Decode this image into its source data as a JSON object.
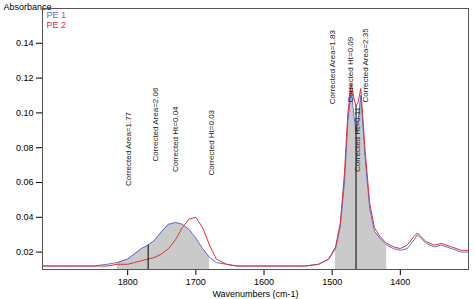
{
  "chart_data": {
    "type": "line",
    "x_label": "Wavenumbers (cm-1)",
    "y_label": "Absorbance",
    "x": [
      1925,
      1900,
      1875,
      1850,
      1830,
      1815,
      1800,
      1790,
      1780,
      1770,
      1760,
      1750,
      1740,
      1730,
      1720,
      1710,
      1700,
      1690,
      1680,
      1670,
      1655,
      1640,
      1620,
      1600,
      1580,
      1560,
      1540,
      1520,
      1505,
      1495,
      1488,
      1482,
      1477,
      1472,
      1468,
      1465,
      1462,
      1458,
      1452,
      1445,
      1438,
      1430,
      1420,
      1410,
      1400,
      1390,
      1380,
      1375,
      1370,
      1362,
      1350,
      1340,
      1325,
      1310,
      1300
    ],
    "series": [
      {
        "name": "PE 1",
        "color": "#5b6fd6",
        "values": [
          0.012,
          0.012,
          0.012,
          0.012,
          0.013,
          0.014,
          0.016,
          0.019,
          0.022,
          0.024,
          0.027,
          0.032,
          0.036,
          0.037,
          0.036,
          0.033,
          0.028,
          0.022,
          0.017,
          0.014,
          0.013,
          0.012,
          0.012,
          0.012,
          0.012,
          0.012,
          0.012,
          0.013,
          0.016,
          0.022,
          0.035,
          0.06,
          0.095,
          0.113,
          0.098,
          0.089,
          0.095,
          0.11,
          0.075,
          0.045,
          0.032,
          0.028,
          0.024,
          0.022,
          0.021,
          0.022,
          0.027,
          0.03,
          0.028,
          0.025,
          0.023,
          0.024,
          0.022,
          0.02,
          0.02
        ]
      },
      {
        "name": "PE 2",
        "color": "#e0303a",
        "values": [
          0.012,
          0.012,
          0.012,
          0.012,
          0.012,
          0.013,
          0.013,
          0.014,
          0.015,
          0.016,
          0.017,
          0.019,
          0.022,
          0.027,
          0.034,
          0.039,
          0.04,
          0.034,
          0.024,
          0.016,
          0.013,
          0.012,
          0.012,
          0.012,
          0.012,
          0.012,
          0.012,
          0.013,
          0.016,
          0.023,
          0.037,
          0.065,
          0.1,
          0.117,
          0.108,
          0.104,
          0.106,
          0.114,
          0.08,
          0.048,
          0.034,
          0.029,
          0.025,
          0.023,
          0.022,
          0.024,
          0.029,
          0.031,
          0.029,
          0.026,
          0.024,
          0.025,
          0.023,
          0.021,
          0.021
        ]
      }
    ],
    "shaded_ranges": [
      [
        1820,
        1680
      ],
      [
        1500,
        1420
      ]
    ],
    "peak_lines": [
      1770,
      1465
    ],
    "annotations": [
      {
        "text": "Corrected Area=1.77",
        "x": 1799,
        "y": 0.058
      },
      {
        "text": "Corrected Area=2.06",
        "x": 1759,
        "y": 0.072
      },
      {
        "text": "Corrected Ht=0.04",
        "x": 1730,
        "y": 0.066
      },
      {
        "text": "Corrected Ht=0.03",
        "x": 1677,
        "y": 0.064
      },
      {
        "text": "Corrected Area=1.83",
        "x": 1499,
        "y": 0.105
      },
      {
        "text": "Corrected Ht=0.09",
        "x": 1473,
        "y": 0.106
      },
      {
        "text": "Corrected Area=2.35",
        "x": 1451,
        "y": 0.106
      },
      {
        "text": "Corrected Ht=0.11",
        "x": 1463,
        "y": 0.066
      }
    ],
    "xlim": [
      1925,
      1300
    ],
    "xticks": [
      1800,
      1700,
      1600,
      1500,
      1400
    ],
    "ylim": [
      0.01,
      0.16
    ],
    "yticks": [
      0.02,
      0.04,
      0.06,
      0.08,
      {
        "value": 0.1,
        "label": "0.10"
      },
      0.12,
      0.14
    ],
    "legend": "top-left",
    "grid": false
  }
}
